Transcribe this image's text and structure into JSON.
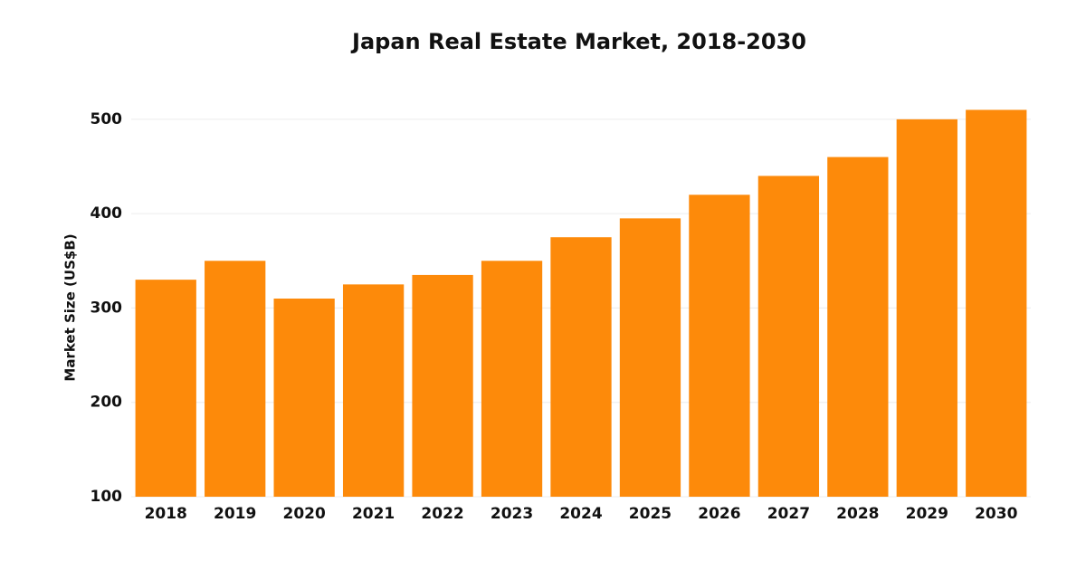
{
  "chart_data": {
    "type": "bar",
    "title": "Japan Real Estate Market, 2018-2030",
    "y_label": "Market Size (US$B)",
    "categories": [
      "2018",
      "2019",
      "2020",
      "2021",
      "2022",
      "2023",
      "2024",
      "2025",
      "2026",
      "2027",
      "2028",
      "2029",
      "2030"
    ],
    "values": [
      330,
      350,
      310,
      325,
      335,
      350,
      375,
      395,
      420,
      440,
      460,
      500,
      510
    ],
    "color": "#fd8a0a",
    "ylim": [
      100,
      520
    ],
    "yticks": [
      100,
      200,
      300,
      400,
      500
    ],
    "grid": true
  }
}
